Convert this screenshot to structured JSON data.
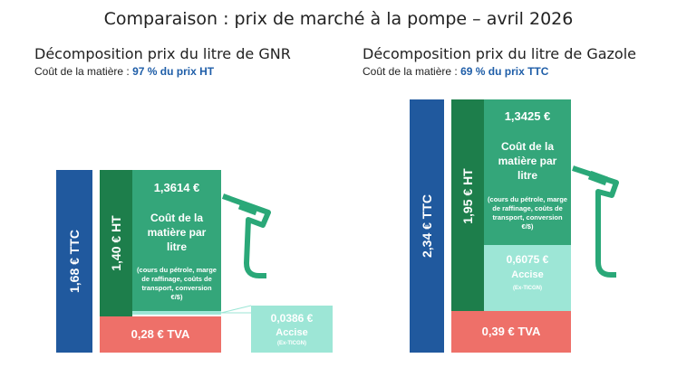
{
  "title": "Comparaison : prix de marché à la pompe – avril 2026",
  "colors": {
    "ttc": "#20599e",
    "ht": "#1d7e4b",
    "matiere": "#34a67a",
    "accise": "#9de6d6",
    "tva": "#ee7069",
    "pump": "#2aa878"
  },
  "panels": [
    {
      "title": "Décomposition prix du litre de GNR",
      "subtitle_prefix": "Coût de la matière : ",
      "subtitle_value": "97 % du prix HT",
      "ttc_label": "1,68 €  TTC",
      "ht_label": "1,40 €  HT",
      "matiere_value": "1,3614 €",
      "matiere_title": "Coût de la matière par litre",
      "matiere_note": "(cours du pétrole, marge de raffinage, coûts de transport, conversion €/$)",
      "accise_value": "0,0386 €",
      "accise_label": "Accise",
      "accise_note": "(Ex-TICGN)",
      "tva_label": "0,28 €  TVA"
    },
    {
      "title": "Décomposition prix du litre de Gazole",
      "subtitle_prefix": "Coût de la matière : ",
      "subtitle_value": "69 % du prix TTC",
      "ttc_label": "2,34 €  TTC",
      "ht_label": "1,95 €  HT",
      "matiere_value": "1,3425 €",
      "matiere_title": "Coût de la matière par litre",
      "matiere_note": "(cours du pétrole, marge de raffinage, coûts de transport, conversion €/$)",
      "accise_value": "0,6075 €",
      "accise_label": "Accise",
      "accise_note": "(Ex-TICGN)",
      "tva_label": "0,39 €  TVA"
    }
  ],
  "chart_data": [
    {
      "type": "bar",
      "title": "Décomposition prix du litre de GNR",
      "categories": [
        "TTC",
        "HT",
        "Coût de la matière",
        "Accise",
        "TVA"
      ],
      "values": [
        1.68,
        1.4,
        1.3614,
        0.0386,
        0.28
      ],
      "unit": "€"
    },
    {
      "type": "bar",
      "title": "Décomposition prix du litre de Gazole",
      "categories": [
        "TTC",
        "HT",
        "Coût de la matière",
        "Accise",
        "TVA"
      ],
      "values": [
        2.34,
        1.95,
        1.3425,
        0.6075,
        0.39
      ],
      "unit": "€"
    }
  ]
}
